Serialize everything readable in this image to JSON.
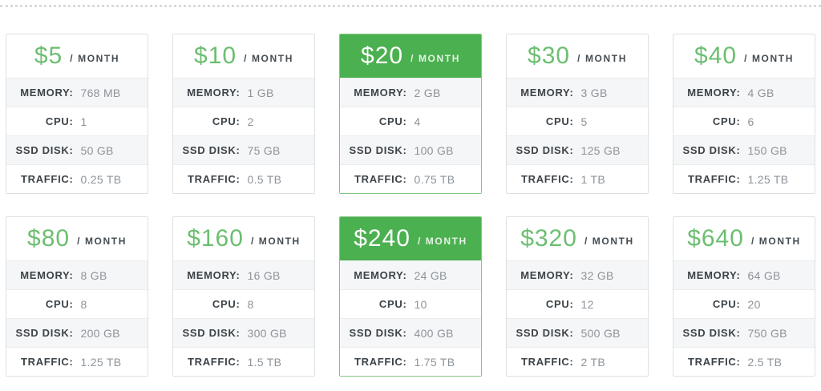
{
  "labels": {
    "month": "/ MONTH",
    "memory": "MEMORY:",
    "cpu": "CPU:",
    "ssd_disk": "SSD DISK:",
    "traffic": "TRAFFIC:"
  },
  "colors": {
    "accent_green": "#4bb04f",
    "price_green": "#6cbe70",
    "selected_card_border": "#82c686",
    "card_border": "#dde0e2",
    "row_divider": "#eaecee",
    "alt_row_bg": "#f5f6f7",
    "label_text": "#3c4348",
    "value_text": "#8d939a",
    "month_text": "#454d52",
    "divider_dots": "#d9dbdd"
  },
  "plans": [
    {
      "price": "$5",
      "memory": "768 MB",
      "cpu": "1",
      "ssd_disk": "50 GB",
      "traffic": "0.25 TB",
      "highlighted": false
    },
    {
      "price": "$10",
      "memory": "1 GB",
      "cpu": "2",
      "ssd_disk": "75 GB",
      "traffic": "0.5 TB",
      "highlighted": false
    },
    {
      "price": "$20",
      "memory": "2 GB",
      "cpu": "4",
      "ssd_disk": "100 GB",
      "traffic": "0.75 TB",
      "highlighted": true
    },
    {
      "price": "$30",
      "memory": "3 GB",
      "cpu": "5",
      "ssd_disk": "125 GB",
      "traffic": "1 TB",
      "highlighted": false
    },
    {
      "price": "$40",
      "memory": "4 GB",
      "cpu": "6",
      "ssd_disk": "150 GB",
      "traffic": "1.25 TB",
      "highlighted": false
    },
    {
      "price": "$80",
      "memory": "8 GB",
      "cpu": "8",
      "ssd_disk": "200 GB",
      "traffic": "1.25 TB",
      "highlighted": false
    },
    {
      "price": "$160",
      "memory": "16 GB",
      "cpu": "8",
      "ssd_disk": "300 GB",
      "traffic": "1.5 TB",
      "highlighted": false
    },
    {
      "price": "$240",
      "memory": "24 GB",
      "cpu": "10",
      "ssd_disk": "400 GB",
      "traffic": "1.75 TB",
      "highlighted": true
    },
    {
      "price": "$320",
      "memory": "32 GB",
      "cpu": "12",
      "ssd_disk": "500 GB",
      "traffic": "2 TB",
      "highlighted": false
    },
    {
      "price": "$640",
      "memory": "64 GB",
      "cpu": "20",
      "ssd_disk": "750 GB",
      "traffic": "2.5 TB",
      "highlighted": false
    }
  ]
}
